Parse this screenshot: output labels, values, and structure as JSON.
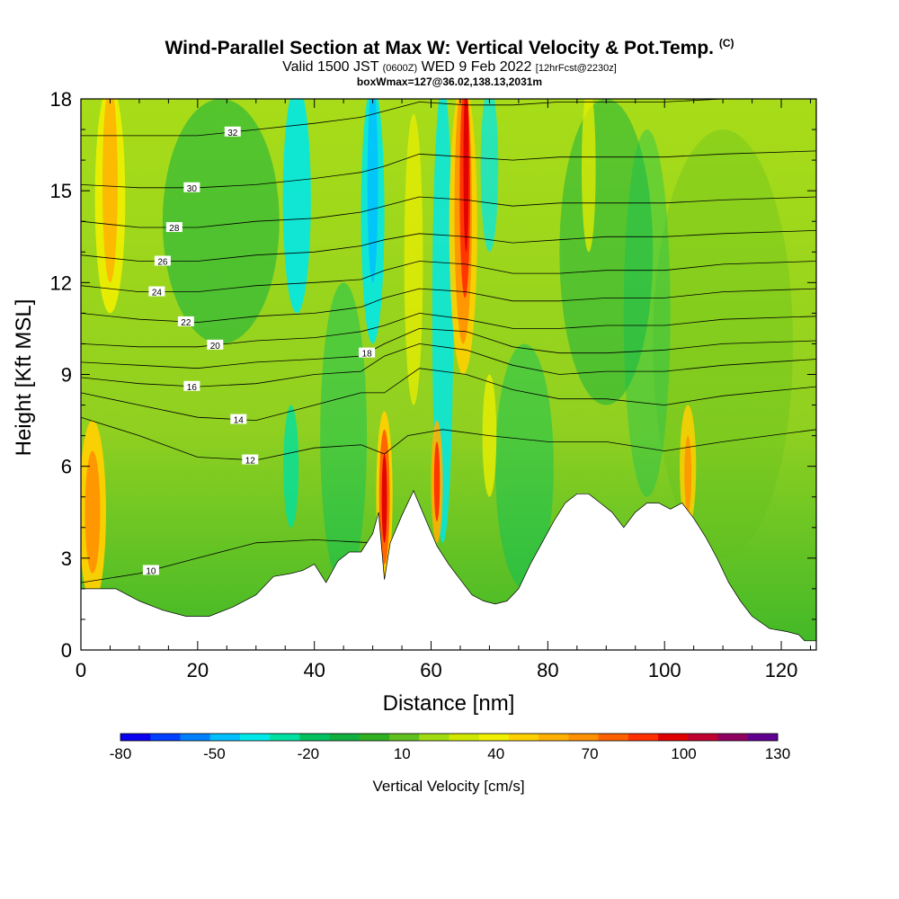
{
  "title": {
    "main": "Wind-Parallel Section at Max W: Vertical Velocity & Pot.Temp.",
    "copyright": "(C)",
    "valid_prefix": "Valid 1500 JST",
    "valid_utc": "(0600Z)",
    "valid_date": "WED 9 Feb 2022",
    "forecast": "[12hrFcst@2230z]",
    "box_info": "boxWmax=127@36.02,138.13,2031m"
  },
  "chart_data": {
    "type": "heatmap",
    "xlabel": "Distance [nm]",
    "ylabel": "Height [Kft MSL]",
    "xlim": [
      0,
      126
    ],
    "ylim": [
      0,
      18
    ],
    "x_ticks": [
      0,
      20,
      40,
      60,
      80,
      100,
      120
    ],
    "y_ticks": [
      0,
      3,
      6,
      9,
      12,
      15,
      18
    ],
    "colorbar": {
      "label": "Vertical Velocity [cm/s]",
      "tick_labels": [
        "-80",
        "-50",
        "-20",
        "10",
        "40",
        "70",
        "100",
        "130"
      ],
      "levels": [
        -80,
        -70,
        -60,
        -50,
        -40,
        -30,
        -20,
        -10,
        0,
        10,
        20,
        30,
        40,
        50,
        60,
        70,
        80,
        90,
        100,
        110,
        120,
        130
      ],
      "colors": [
        "#0a00f0",
        "#0040ff",
        "#0080ff",
        "#00bfff",
        "#00e8e8",
        "#00e0a0",
        "#00c060",
        "#10b040",
        "#30b020",
        "#60c020",
        "#a0dc10",
        "#d0e800",
        "#f0f000",
        "#ffd000",
        "#ffb000",
        "#ff9000",
        "#ff6000",
        "#ff3000",
        "#e00000",
        "#c00030",
        "#900060",
        "#600090"
      ]
    },
    "terrain_kft": [
      [
        0,
        2.0
      ],
      [
        2,
        2.0
      ],
      [
        6,
        2.0
      ],
      [
        10,
        1.6
      ],
      [
        14,
        1.3
      ],
      [
        18,
        1.1
      ],
      [
        22,
        1.1
      ],
      [
        26,
        1.4
      ],
      [
        30,
        1.8
      ],
      [
        33,
        2.4
      ],
      [
        36,
        2.5
      ],
      [
        38,
        2.6
      ],
      [
        40,
        2.8
      ],
      [
        42,
        2.2
      ],
      [
        44,
        2.9
      ],
      [
        46,
        3.2
      ],
      [
        48,
        3.2
      ],
      [
        50,
        3.8
      ],
      [
        51,
        4.5
      ],
      [
        52,
        2.3
      ],
      [
        53,
        3.5
      ],
      [
        55,
        4.4
      ],
      [
        57,
        5.2
      ],
      [
        59,
        4.3
      ],
      [
        61,
        3.4
      ],
      [
        63,
        2.8
      ],
      [
        65,
        2.3
      ],
      [
        67,
        1.8
      ],
      [
        69,
        1.6
      ],
      [
        71,
        1.5
      ],
      [
        73,
        1.6
      ],
      [
        75,
        2.0
      ],
      [
        77,
        2.8
      ],
      [
        79,
        3.5
      ],
      [
        81,
        4.2
      ],
      [
        83,
        4.8
      ],
      [
        85,
        5.1
      ],
      [
        87,
        5.1
      ],
      [
        89,
        4.8
      ],
      [
        91,
        4.5
      ],
      [
        93,
        4.0
      ],
      [
        95,
        4.5
      ],
      [
        97,
        4.8
      ],
      [
        99,
        4.8
      ],
      [
        101,
        4.6
      ],
      [
        103,
        4.8
      ],
      [
        105,
        4.3
      ],
      [
        107,
        3.7
      ],
      [
        109,
        3.0
      ],
      [
        111,
        2.2
      ],
      [
        113,
        1.6
      ],
      [
        115,
        1.1
      ],
      [
        118,
        0.7
      ],
      [
        121,
        0.6
      ],
      [
        123,
        0.5
      ],
      [
        124,
        0.3
      ],
      [
        126,
        0.3
      ]
    ],
    "theta_contours": [
      {
        "label": "10",
        "label_x": 12,
        "pts": [
          [
            0,
            2.2
          ],
          [
            10,
            2.5
          ],
          [
            20,
            3.0
          ],
          [
            30,
            3.5
          ],
          [
            40,
            3.6
          ],
          [
            50,
            3.5
          ]
        ]
      },
      {
        "label": "12",
        "label_x": 29,
        "pts": [
          [
            0,
            7.6
          ],
          [
            10,
            7.0
          ],
          [
            20,
            6.3
          ],
          [
            30,
            6.2
          ],
          [
            40,
            6.6
          ],
          [
            48,
            6.7
          ],
          [
            52,
            6.4
          ],
          [
            56,
            7.0
          ],
          [
            62,
            7.2
          ],
          [
            70,
            7.0
          ],
          [
            80,
            6.8
          ],
          [
            90,
            6.8
          ],
          [
            100,
            6.5
          ],
          [
            110,
            6.8
          ],
          [
            126,
            7.2
          ]
        ]
      },
      {
        "label": "14",
        "label_x": 27,
        "pts": [
          [
            0,
            8.4
          ],
          [
            10,
            8.0
          ],
          [
            20,
            7.6
          ],
          [
            30,
            7.5
          ],
          [
            40,
            8.0
          ],
          [
            48,
            8.4
          ],
          [
            52,
            8.4
          ],
          [
            58,
            9.2
          ],
          [
            66,
            9.0
          ],
          [
            74,
            8.5
          ],
          [
            82,
            8.2
          ],
          [
            90,
            8.2
          ],
          [
            100,
            8.0
          ],
          [
            110,
            8.3
          ],
          [
            126,
            8.6
          ]
        ]
      },
      {
        "label": "16",
        "label_x": 19,
        "pts": [
          [
            0,
            8.9
          ],
          [
            10,
            8.7
          ],
          [
            20,
            8.6
          ],
          [
            30,
            8.7
          ],
          [
            40,
            9.0
          ],
          [
            48,
            9.1
          ],
          [
            52,
            9.6
          ],
          [
            58,
            10.0
          ],
          [
            66,
            9.8
          ],
          [
            74,
            9.3
          ],
          [
            82,
            9.0
          ],
          [
            90,
            9.1
          ],
          [
            100,
            9.1
          ],
          [
            110,
            9.3
          ],
          [
            126,
            9.5
          ]
        ]
      },
      {
        "label": "18",
        "label_x": 49,
        "pts": [
          [
            0,
            9.4
          ],
          [
            10,
            9.3
          ],
          [
            20,
            9.2
          ],
          [
            30,
            9.4
          ],
          [
            40,
            9.5
          ],
          [
            48,
            9.6
          ],
          [
            52,
            10.0
          ],
          [
            58,
            10.5
          ],
          [
            66,
            10.4
          ],
          [
            74,
            9.9
          ],
          [
            82,
            9.7
          ],
          [
            90,
            9.7
          ],
          [
            100,
            9.8
          ],
          [
            110,
            10.0
          ],
          [
            126,
            10.1
          ]
        ]
      },
      {
        "label": "20",
        "label_x": 23,
        "pts": [
          [
            0,
            10.0
          ],
          [
            10,
            9.9
          ],
          [
            20,
            9.9
          ],
          [
            30,
            10.1
          ],
          [
            40,
            10.2
          ],
          [
            48,
            10.4
          ],
          [
            52,
            10.6
          ],
          [
            58,
            11.0
          ],
          [
            66,
            10.8
          ],
          [
            74,
            10.5
          ],
          [
            82,
            10.5
          ],
          [
            90,
            10.6
          ],
          [
            100,
            10.6
          ],
          [
            110,
            10.8
          ],
          [
            126,
            10.9
          ]
        ]
      },
      {
        "label": "22",
        "label_x": 18,
        "pts": [
          [
            0,
            11.0
          ],
          [
            10,
            10.8
          ],
          [
            20,
            10.7
          ],
          [
            30,
            10.9
          ],
          [
            40,
            11.0
          ],
          [
            48,
            11.2
          ],
          [
            52,
            11.5
          ],
          [
            58,
            11.8
          ],
          [
            66,
            11.7
          ],
          [
            74,
            11.4
          ],
          [
            82,
            11.4
          ],
          [
            90,
            11.5
          ],
          [
            100,
            11.5
          ],
          [
            110,
            11.7
          ],
          [
            126,
            11.8
          ]
        ]
      },
      {
        "label": "24",
        "label_x": 13,
        "pts": [
          [
            0,
            11.9
          ],
          [
            10,
            11.7
          ],
          [
            20,
            11.7
          ],
          [
            30,
            11.9
          ],
          [
            40,
            12.0
          ],
          [
            48,
            12.1
          ],
          [
            52,
            12.4
          ],
          [
            58,
            12.7
          ],
          [
            66,
            12.6
          ],
          [
            74,
            12.3
          ],
          [
            82,
            12.3
          ],
          [
            90,
            12.4
          ],
          [
            100,
            12.4
          ],
          [
            110,
            12.6
          ],
          [
            126,
            12.7
          ]
        ]
      },
      {
        "label": "26",
        "label_x": 14,
        "pts": [
          [
            0,
            12.9
          ],
          [
            10,
            12.7
          ],
          [
            20,
            12.7
          ],
          [
            30,
            12.9
          ],
          [
            40,
            13.0
          ],
          [
            48,
            13.2
          ],
          [
            52,
            13.4
          ],
          [
            58,
            13.6
          ],
          [
            66,
            13.5
          ],
          [
            74,
            13.3
          ],
          [
            82,
            13.4
          ],
          [
            90,
            13.5
          ],
          [
            100,
            13.5
          ],
          [
            110,
            13.6
          ],
          [
            126,
            13.7
          ]
        ]
      },
      {
        "label": "28",
        "label_x": 16,
        "pts": [
          [
            0,
            14.0
          ],
          [
            10,
            13.8
          ],
          [
            20,
            13.8
          ],
          [
            30,
            14.0
          ],
          [
            40,
            14.1
          ],
          [
            48,
            14.3
          ],
          [
            52,
            14.5
          ],
          [
            58,
            14.8
          ],
          [
            66,
            14.7
          ],
          [
            74,
            14.5
          ],
          [
            82,
            14.6
          ],
          [
            90,
            14.6
          ],
          [
            100,
            14.6
          ],
          [
            110,
            14.7
          ],
          [
            126,
            14.8
          ]
        ]
      },
      {
        "label": "30",
        "label_x": 19,
        "pts": [
          [
            0,
            15.2
          ],
          [
            10,
            15.1
          ],
          [
            20,
            15.1
          ],
          [
            30,
            15.2
          ],
          [
            40,
            15.4
          ],
          [
            48,
            15.6
          ],
          [
            52,
            15.8
          ],
          [
            58,
            16.2
          ],
          [
            66,
            16.1
          ],
          [
            74,
            16.0
          ],
          [
            82,
            16.1
          ],
          [
            90,
            16.1
          ],
          [
            100,
            16.1
          ],
          [
            110,
            16.2
          ],
          [
            126,
            16.3
          ]
        ]
      },
      {
        "label": "32",
        "label_x": 26,
        "pts": [
          [
            0,
            16.8
          ],
          [
            10,
            16.8
          ],
          [
            20,
            16.8
          ],
          [
            30,
            17.0
          ],
          [
            40,
            17.2
          ],
          [
            48,
            17.4
          ],
          [
            52,
            17.6
          ],
          [
            58,
            17.9
          ],
          [
            66,
            17.8
          ],
          [
            74,
            17.8
          ],
          [
            82,
            17.9
          ],
          [
            90,
            17.9
          ],
          [
            100,
            17.9
          ],
          [
            110,
            18.0
          ],
          [
            126,
            18.0
          ]
        ]
      }
    ]
  }
}
